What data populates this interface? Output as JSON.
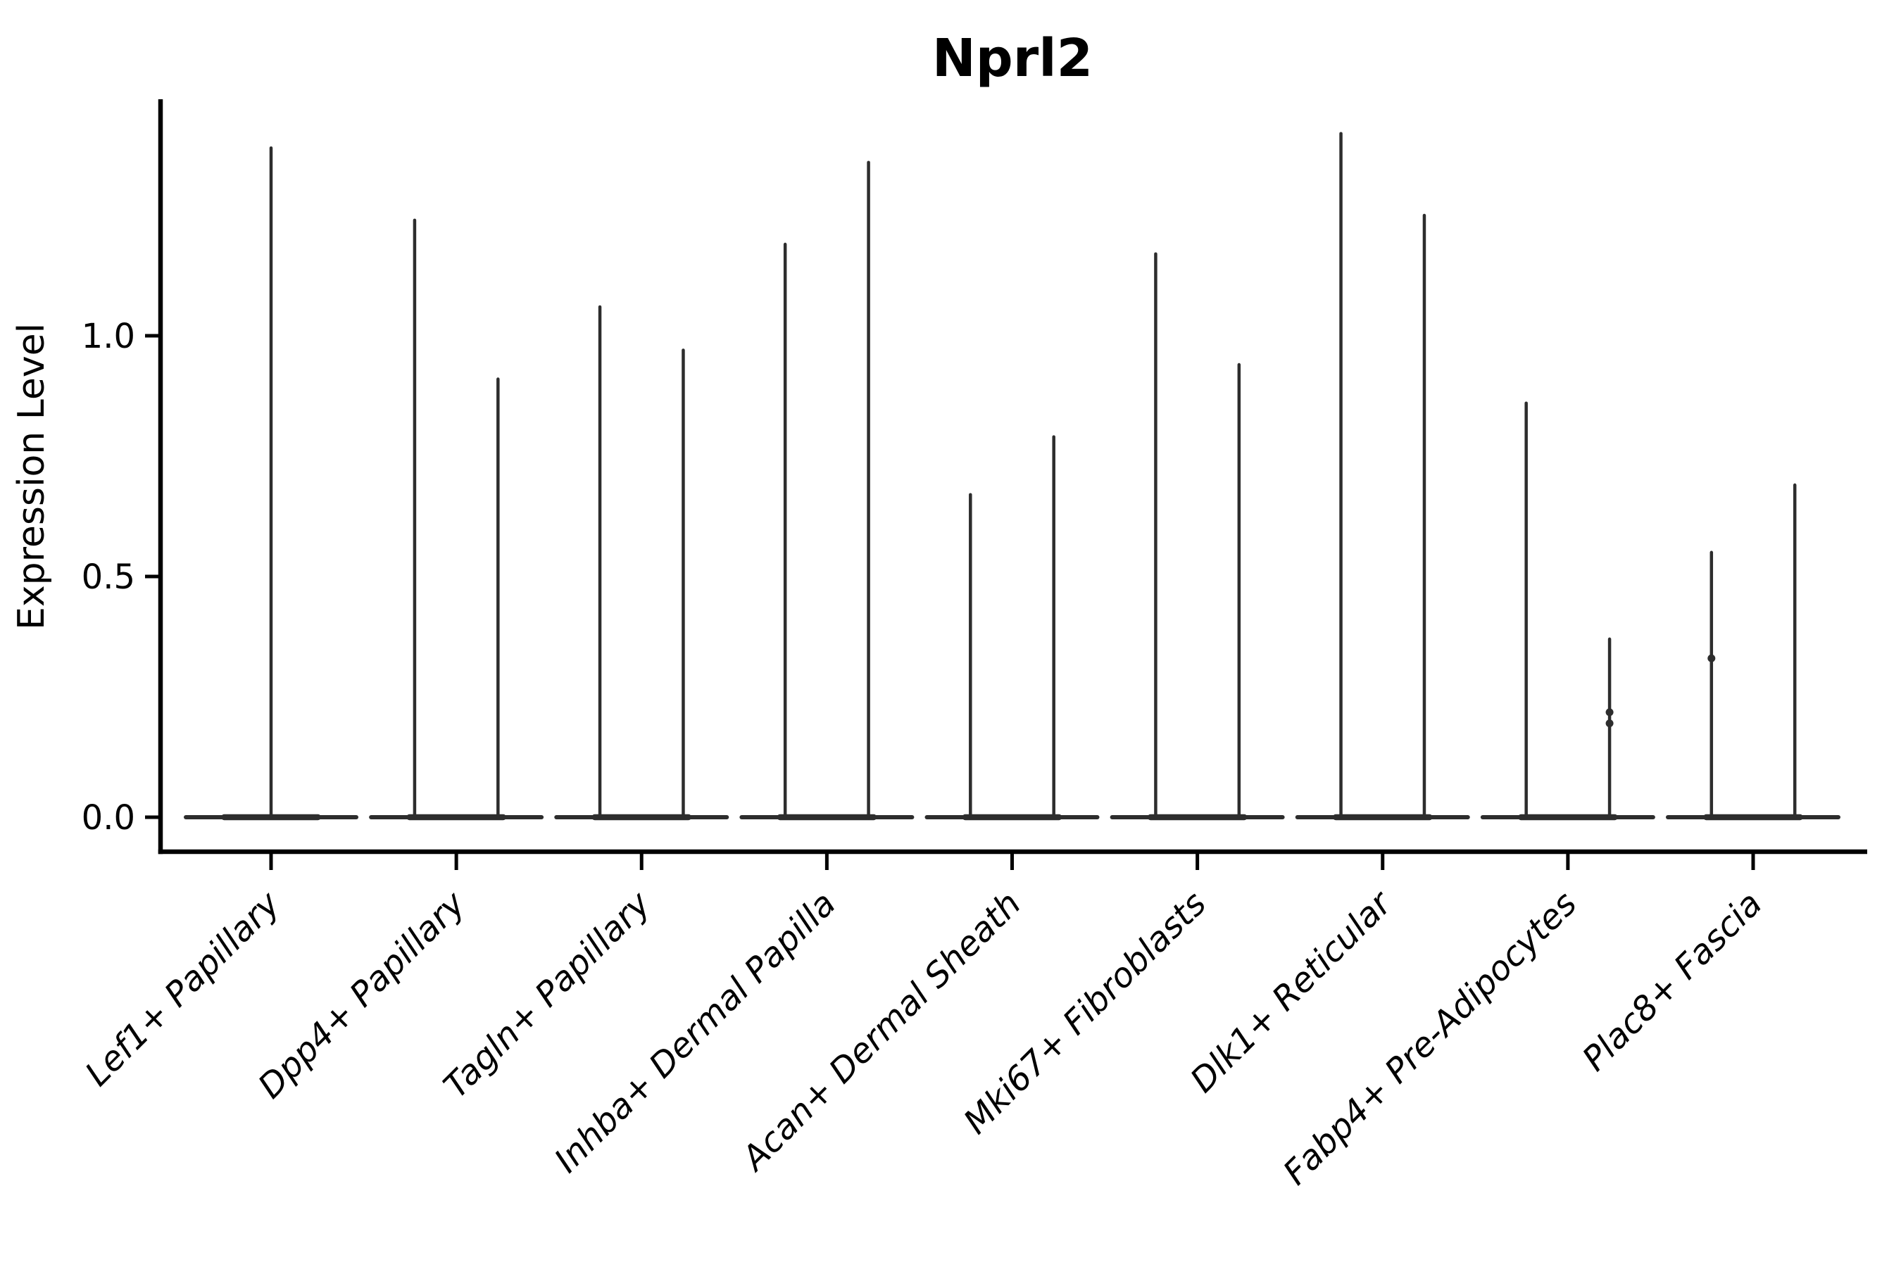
{
  "chart_data": {
    "type": "violin",
    "title": "Nprl2",
    "xlabel": "",
    "ylabel": "Expression Level",
    "ytick_labels": [
      "0.0",
      "0.5",
      "1.0"
    ],
    "ytick_values": [
      0.0,
      0.5,
      1.0
    ],
    "ylim": [
      -0.07,
      1.49
    ],
    "grid": false,
    "legend": null,
    "xtick_rotation": 45,
    "categories": [
      "Lef1+ Papillary",
      "Dpp4+ Papillary",
      "Tagln+ Papillary",
      "Inhba+ Dermal Papilla",
      "Acan+ Dermal Sheath",
      "Mki67+ Fibroblasts",
      "Dlk1+ Reticular",
      "Fabp4+ Pre-Adipocytes",
      "Plac8+ Fascia"
    ],
    "violins": [
      {
        "category": "Lef1+ Papillary",
        "base_value": 0.0,
        "spikes": [
          {
            "offset": 0.0,
            "max": 1.39,
            "beads": []
          }
        ]
      },
      {
        "category": "Dpp4+ Papillary",
        "base_value": 0.0,
        "spikes": [
          {
            "offset": -0.225,
            "max": 1.24,
            "beads": []
          },
          {
            "offset": 0.225,
            "max": 0.91,
            "beads": []
          }
        ]
      },
      {
        "category": "Tagln+ Papillary",
        "base_value": 0.0,
        "spikes": [
          {
            "offset": -0.225,
            "max": 1.06,
            "beads": []
          },
          {
            "offset": 0.225,
            "max": 0.97,
            "beads": []
          }
        ]
      },
      {
        "category": "Inhba+ Dermal Papilla",
        "base_value": 0.0,
        "spikes": [
          {
            "offset": -0.225,
            "max": 1.19,
            "beads": []
          },
          {
            "offset": 0.225,
            "max": 1.36,
            "beads": []
          }
        ]
      },
      {
        "category": "Acan+ Dermal Sheath",
        "base_value": 0.0,
        "spikes": [
          {
            "offset": -0.225,
            "max": 0.67,
            "beads": []
          },
          {
            "offset": 0.225,
            "max": 0.79,
            "beads": []
          }
        ]
      },
      {
        "category": "Mki67+ Fibroblasts",
        "base_value": 0.0,
        "spikes": [
          {
            "offset": -0.225,
            "max": 1.17,
            "beads": []
          },
          {
            "offset": 0.225,
            "max": 0.94,
            "beads": []
          }
        ]
      },
      {
        "category": "Dlk1+ Reticular",
        "base_value": 0.0,
        "spikes": [
          {
            "offset": -0.225,
            "max": 1.42,
            "beads": []
          },
          {
            "offset": 0.225,
            "max": 1.25,
            "beads": []
          }
        ]
      },
      {
        "category": "Fabp4+ Pre-Adipocytes",
        "base_value": 0.0,
        "spikes": [
          {
            "offset": -0.225,
            "max": 0.86,
            "beads": []
          },
          {
            "offset": 0.225,
            "max": 0.37,
            "beads": [
              0.218,
              0.195
            ]
          }
        ]
      },
      {
        "category": "Plac8+ Fascia",
        "base_value": 0.0,
        "spikes": [
          {
            "offset": -0.225,
            "max": 0.55,
            "beads": [
              0.33
            ]
          },
          {
            "offset": 0.225,
            "max": 0.69,
            "beads": []
          }
        ]
      }
    ],
    "colors": {
      "violin": "#2d2d2d",
      "axis": "#000000",
      "text": "#000000",
      "background": "#ffffff"
    }
  }
}
